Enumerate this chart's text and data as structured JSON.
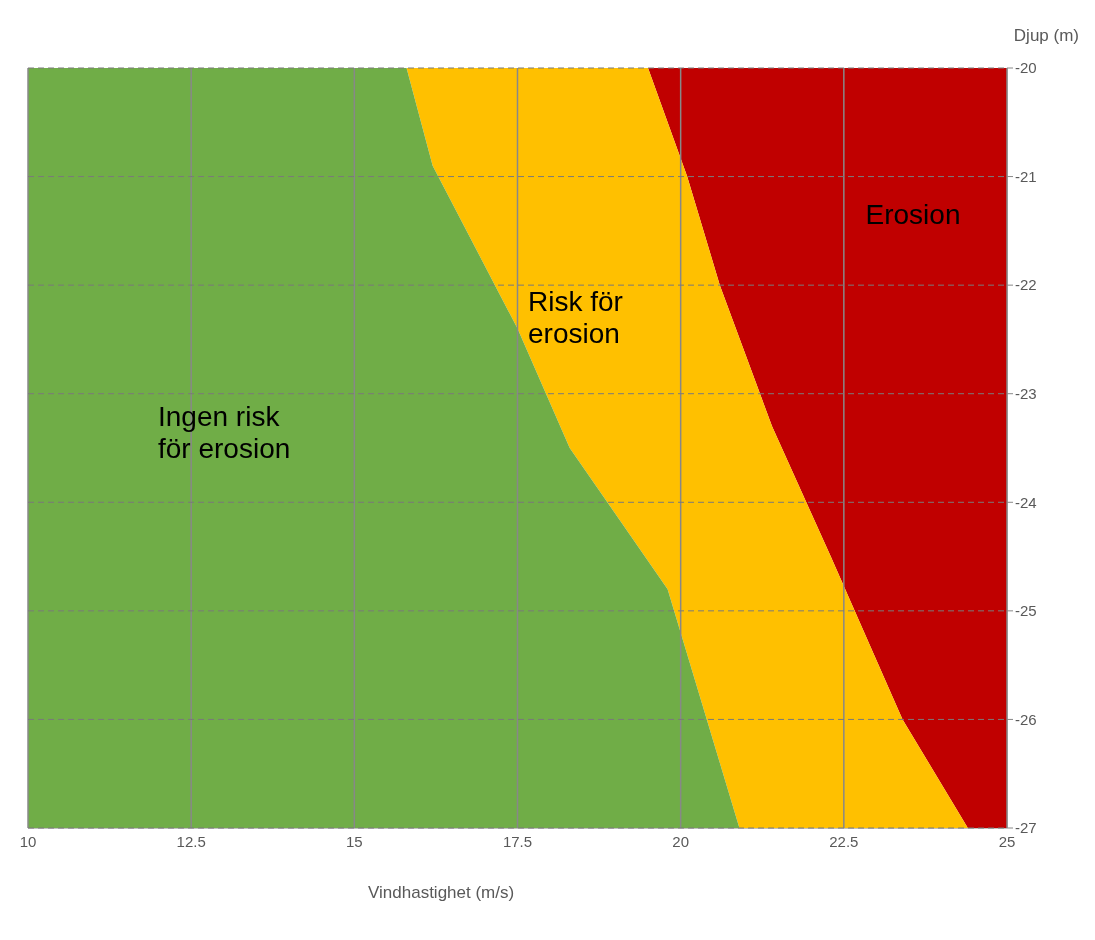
{
  "chart_data": {
    "type": "area",
    "xlabel": "Vindhastighet (m/s)",
    "ylabel": "Djup (m)",
    "xlim": [
      10,
      25
    ],
    "xticks": [
      10,
      12.5,
      15,
      17.5,
      20,
      22.5,
      25
    ],
    "ylim": [
      -27,
      -20
    ],
    "yticks": [
      -27,
      -26,
      -25,
      -24,
      -23,
      -22,
      -21,
      -20
    ],
    "grid": true,
    "series": [
      {
        "name": "Erosion",
        "color": "#c00000",
        "x": [
          19.5,
          25,
          25,
          24.4,
          23.4,
          22.3,
          21.4,
          20.6,
          20.1
        ],
        "values": [
          -20,
          -20,
          -27,
          -27,
          -26,
          -24.5,
          -23.3,
          -22,
          -21
        ]
      },
      {
        "name": "Risk för erosion",
        "color": "#ffc000",
        "x": [
          15.8,
          19.5,
          20.1,
          20.6,
          21.4,
          22.3,
          23.4,
          24.4,
          20.9,
          19.8,
          18.3,
          17.5,
          16.2
        ],
        "values": [
          -20,
          -20,
          -21,
          -22,
          -23.3,
          -24.5,
          -26,
          -27,
          -27,
          -24.8,
          -23.5,
          -22.4,
          -20.9
        ]
      },
      {
        "name": "Ingen risk för erosion",
        "color": "#70ad47",
        "x": [
          10,
          15.8,
          16.2,
          17.5,
          18.3,
          19.8,
          20.9,
          10
        ],
        "values": [
          -20,
          -20,
          -20.9,
          -22.4,
          -23.5,
          -24.8,
          -27,
          -27
        ]
      }
    ]
  }
}
